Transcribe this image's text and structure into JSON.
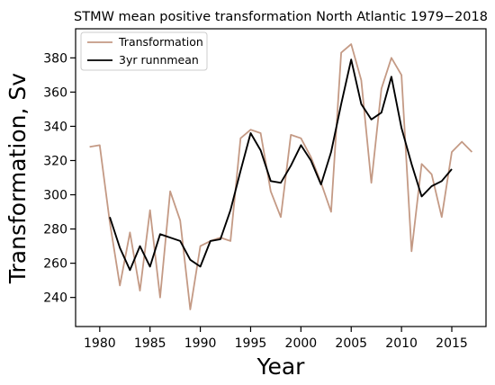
{
  "chart_data": {
    "type": "line",
    "title": "STMW mean positive transformation North Atlantic 1979−2018",
    "xlabel": "Year",
    "ylabel": "Transformation, Sv",
    "xlim": [
      1977.6,
      2018.4
    ],
    "ylim": [
      223,
      397
    ],
    "xticks": [
      1980,
      1985,
      1990,
      1995,
      2000,
      2005,
      2010,
      2015
    ],
    "yticks": [
      240,
      260,
      280,
      300,
      320,
      340,
      360,
      380
    ],
    "grid": false,
    "legend_position": "top-left",
    "series": [
      {
        "name": "Transformation",
        "color": "#c49a85",
        "x": [
          1979,
          1980,
          1981,
          1982,
          1983,
          1984,
          1985,
          1986,
          1987,
          1988,
          1989,
          1990,
          1991,
          1992,
          1993,
          1994,
          1995,
          1996,
          1997,
          1998,
          1999,
          2000,
          2001,
          2002,
          2003,
          2004,
          2005,
          2006,
          2007,
          2008,
          2009,
          2010,
          2011,
          2012,
          2013,
          2014,
          2015,
          2016,
          2017
        ],
        "values": [
          328,
          329,
          284,
          247,
          278,
          244,
          291,
          240,
          302,
          285,
          233,
          270,
          273,
          275,
          273,
          333,
          338,
          336,
          302,
          287,
          335,
          333,
          322,
          307,
          290,
          383,
          388,
          367,
          307,
          362,
          380,
          370,
          267,
          318,
          312,
          287,
          325,
          331,
          325
        ]
      },
      {
        "name": "3yr runnmean",
        "color": "#000000",
        "x": [
          1981,
          1982,
          1983,
          1984,
          1985,
          1986,
          1987,
          1988,
          1989,
          1990,
          1991,
          1992,
          1993,
          1994,
          1995,
          1996,
          1997,
          1998,
          1999,
          2000,
          2001,
          2002,
          2003,
          2004,
          2005,
          2006,
          2007,
          2008,
          2009,
          2010,
          2011,
          2012,
          2013,
          2014,
          2015
        ],
        "values": [
          287,
          269,
          256,
          270,
          258,
          277,
          275,
          273,
          262,
          258,
          273,
          274,
          291,
          314,
          336,
          326,
          308,
          307,
          317,
          329,
          320,
          306,
          325,
          353,
          379,
          353,
          344,
          348,
          369,
          339,
          318,
          299,
          305,
          308,
          315
        ]
      }
    ]
  }
}
